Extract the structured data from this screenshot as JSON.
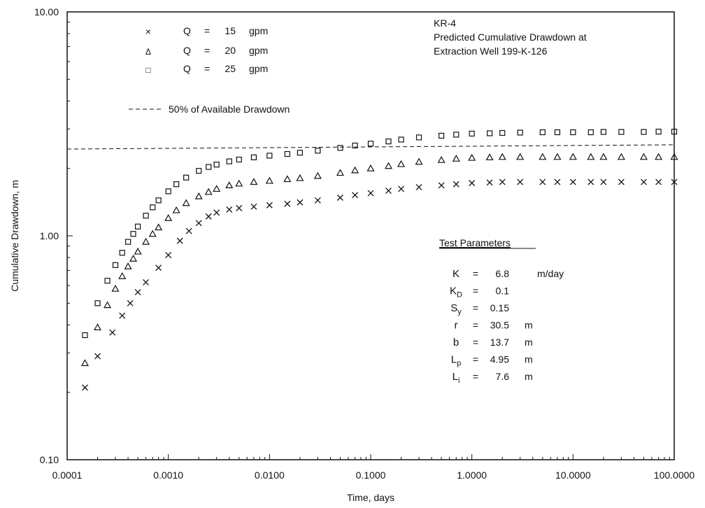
{
  "chart_data": {
    "type": "scatter",
    "title_lines": [
      "KR-4",
      "Predicted Cumulative Drawdown at",
      "Extraction Well 199-K-126"
    ],
    "xlabel": "Time,  days",
    "ylabel": "Cumulative Drawdown, m",
    "x_scale": "log",
    "y_scale": "log",
    "xlim": [
      0.0001,
      100
    ],
    "ylim": [
      0.1,
      10
    ],
    "x_ticks": [
      "0.0001",
      "0.0010",
      "0.0100",
      "0.1000",
      "1.0000",
      "10.0000",
      "100.0000"
    ],
    "y_ticks": [
      "0.10",
      "1.00",
      "10.00"
    ],
    "grid": false,
    "legend_position": "top-left",
    "legend": [
      {
        "marker": "×",
        "q": "Q",
        "eq": "=",
        "value": "15",
        "unit": "gpm"
      },
      {
        "marker": "Δ",
        "q": "Q",
        "eq": "=",
        "value": "20",
        "unit": "gpm"
      },
      {
        "marker": "□",
        "q": "Q",
        "eq": "=",
        "value": "25",
        "unit": "gpm"
      }
    ],
    "reference_line": {
      "label": "50% of Available Drawdown",
      "y_start": 2.44,
      "y_end": 2.55
    },
    "series": [
      {
        "name": "Q = 15 gpm",
        "marker": "x",
        "x": [
          0.00015,
          0.0002,
          0.00028,
          0.00035,
          0.00042,
          0.0005,
          0.0006,
          0.0008,
          0.001,
          0.0013,
          0.0016,
          0.002,
          0.0025,
          0.003,
          0.004,
          0.005,
          0.007,
          0.01,
          0.015,
          0.02,
          0.03,
          0.05,
          0.07,
          0.1,
          0.15,
          0.2,
          0.3,
          0.5,
          0.7,
          1,
          1.5,
          2,
          3,
          5,
          7,
          10,
          15,
          20,
          30,
          50,
          70,
          100
        ],
        "y": [
          0.21,
          0.29,
          0.37,
          0.44,
          0.5,
          0.56,
          0.62,
          0.72,
          0.82,
          0.95,
          1.05,
          1.14,
          1.22,
          1.27,
          1.31,
          1.33,
          1.35,
          1.37,
          1.39,
          1.41,
          1.44,
          1.48,
          1.52,
          1.55,
          1.59,
          1.62,
          1.65,
          1.68,
          1.7,
          1.72,
          1.73,
          1.74,
          1.74,
          1.74,
          1.74,
          1.74,
          1.74,
          1.74,
          1.74,
          1.74,
          1.74,
          1.74
        ]
      },
      {
        "name": "Q = 20 gpm",
        "marker": "triangle",
        "x": [
          0.00015,
          0.0002,
          0.00025,
          0.0003,
          0.00035,
          0.0004,
          0.00045,
          0.0005,
          0.0006,
          0.0007,
          0.0008,
          0.001,
          0.0012,
          0.0015,
          0.002,
          0.0025,
          0.003,
          0.004,
          0.005,
          0.007,
          0.01,
          0.015,
          0.02,
          0.03,
          0.05,
          0.07,
          0.1,
          0.15,
          0.2,
          0.3,
          0.5,
          0.7,
          1,
          1.5,
          2,
          3,
          5,
          7,
          10,
          15,
          20,
          30,
          50,
          70,
          100
        ],
        "y": [
          0.27,
          0.39,
          0.49,
          0.58,
          0.66,
          0.73,
          0.79,
          0.85,
          0.94,
          1.02,
          1.09,
          1.2,
          1.3,
          1.4,
          1.5,
          1.57,
          1.62,
          1.68,
          1.71,
          1.74,
          1.76,
          1.79,
          1.81,
          1.85,
          1.91,
          1.96,
          2.0,
          2.05,
          2.09,
          2.14,
          2.18,
          2.21,
          2.23,
          2.24,
          2.25,
          2.25,
          2.25,
          2.25,
          2.25,
          2.25,
          2.25,
          2.25,
          2.25,
          2.25,
          2.25
        ]
      },
      {
        "name": "Q = 25 gpm",
        "marker": "square",
        "x": [
          0.00015,
          0.0002,
          0.00025,
          0.0003,
          0.00035,
          0.0004,
          0.00045,
          0.0005,
          0.0006,
          0.0007,
          0.0008,
          0.001,
          0.0012,
          0.0015,
          0.002,
          0.0025,
          0.003,
          0.004,
          0.005,
          0.007,
          0.01,
          0.015,
          0.02,
          0.03,
          0.05,
          0.07,
          0.1,
          0.15,
          0.2,
          0.3,
          0.5,
          0.7,
          1,
          1.5,
          2,
          3,
          5,
          7,
          10,
          15,
          20,
          30,
          50,
          70,
          100
        ],
        "y": [
          0.36,
          0.5,
          0.63,
          0.74,
          0.84,
          0.94,
          1.02,
          1.1,
          1.23,
          1.34,
          1.44,
          1.58,
          1.7,
          1.82,
          1.95,
          2.03,
          2.08,
          2.15,
          2.19,
          2.24,
          2.28,
          2.32,
          2.35,
          2.4,
          2.47,
          2.53,
          2.58,
          2.64,
          2.69,
          2.75,
          2.8,
          2.83,
          2.86,
          2.87,
          2.88,
          2.89,
          2.9,
          2.9,
          2.9,
          2.9,
          2.91,
          2.91,
          2.91,
          2.92,
          2.92
        ]
      }
    ]
  },
  "test_parameters": {
    "heading": "Test Parameters",
    "rows": [
      {
        "sym": "K",
        "sub": "",
        "eq": "=",
        "value": "6.8",
        "unit": "m/day"
      },
      {
        "sym": "K",
        "sub": "D",
        "eq": "=",
        "value": "0.1",
        "unit": ""
      },
      {
        "sym": "S",
        "sub": "y",
        "eq": "=",
        "value": "0.15",
        "unit": ""
      },
      {
        "sym": "r",
        "sub": "",
        "eq": "=",
        "value": "30.5",
        "unit": "m"
      },
      {
        "sym": "b",
        "sub": "",
        "eq": "=",
        "value": "13.7",
        "unit": "m"
      },
      {
        "sym": "L",
        "sub": "p",
        "eq": "=",
        "value": "4.95",
        "unit": "m"
      },
      {
        "sym": "L",
        "sub": "i",
        "eq": "=",
        "value": "7.6",
        "unit": "m"
      }
    ]
  }
}
